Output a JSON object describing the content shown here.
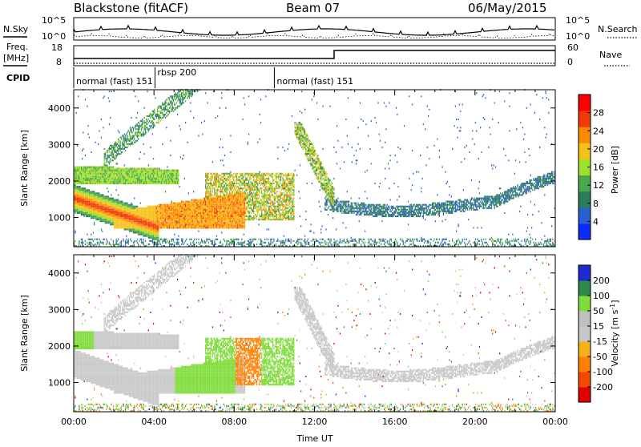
{
  "header": {
    "station": "Blackstone (fitACF)",
    "beam": "Beam 07",
    "date": "06/May/2015"
  },
  "left_labels": {
    "nsky": "N.Sky",
    "freq_line1": "Freq.",
    "freq_line2": "[MHz]",
    "cpid": "CPID"
  },
  "right_labels": {
    "nsearch": "N.Search",
    "nave": "Nave"
  },
  "noise_panel": {
    "left_ticks": [
      "10^5",
      "10^0"
    ],
    "right_ticks": [
      "10^5",
      "10^0"
    ]
  },
  "freq_panel": {
    "left_ticks": [
      "18",
      "8"
    ],
    "right_ticks": [
      "60",
      "0"
    ]
  },
  "cpid_segments": [
    {
      "label": "normal (fast) 151",
      "start_h": 0.0
    },
    {
      "label": "rbsp 200",
      "start_h": 4.05
    },
    {
      "label": "normal (fast) 151",
      "start_h": 10.0
    }
  ],
  "colors": {
    "power_scale": [
      "#0a2cff",
      "#2a5fcf",
      "#2e7d5a",
      "#49a94a",
      "#9ee12a",
      "#f6c21a",
      "#ff8a00",
      "#f13a0a",
      "#ff0000"
    ],
    "velocity_scale": [
      "#1f2bd2",
      "#2d8a4a",
      "#7fdc3a",
      "#c0c0c0",
      "#c8c8c8",
      "#f5b21a",
      "#ff8000",
      "#f24a00",
      "#e00000"
    ]
  },
  "chart_data": [
    {
      "type": "heatmap",
      "title": "",
      "xlabel": "",
      "ylabel": "Slant Range [km]",
      "colorbar_label": "Power [dB]",
      "xlim": [
        0,
        24
      ],
      "ylim": [
        200,
        4500
      ],
      "y_ticks": [
        "1000",
        "2000",
        "3000",
        "4000"
      ],
      "colorbar_ticks": [
        "28",
        "24",
        "20",
        "16",
        "12",
        "8",
        "4"
      ],
      "colorbar_range": [
        0,
        32
      ],
      "grid": false
    },
    {
      "type": "heatmap",
      "title": "",
      "xlabel": "Time UT",
      "ylabel": "Slant Range [km]",
      "colorbar_label": "Velocity [m s^-1]",
      "xlim": [
        0,
        24
      ],
      "ylim": [
        200,
        4500
      ],
      "x_ticks": [
        "00:00",
        "04:00",
        "08:00",
        "12:00",
        "16:00",
        "20:00",
        "00:00"
      ],
      "y_ticks": [
        "1000",
        "2000",
        "3000",
        "4000"
      ],
      "colorbar_ticks": [
        "200",
        "100",
        "50",
        "15",
        "-15",
        "-50",
        "-100",
        "-200"
      ],
      "grid": false
    }
  ]
}
